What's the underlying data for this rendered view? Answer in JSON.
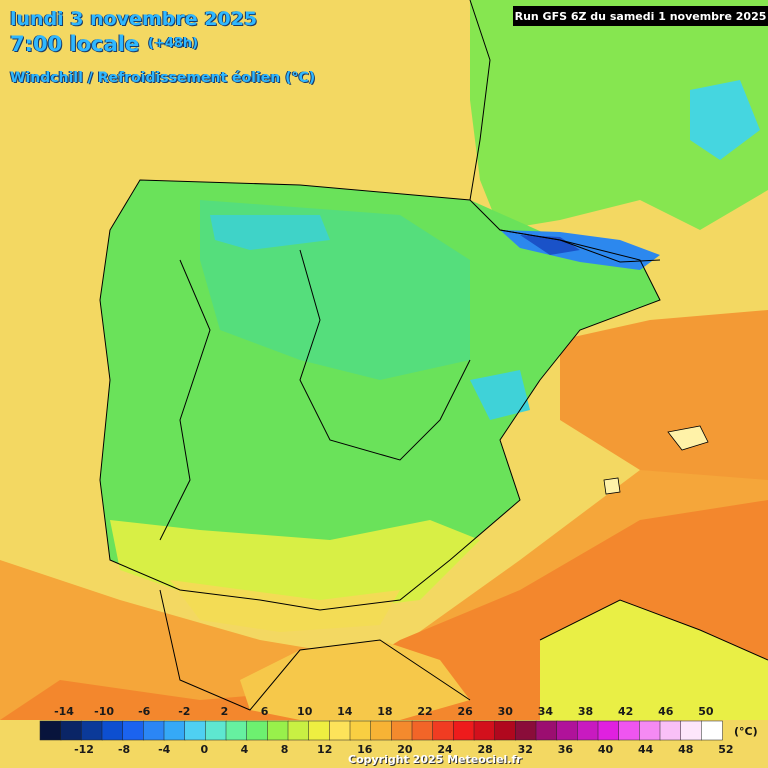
{
  "header": {
    "date": "lundi 3 novembre 2025",
    "time": "7:00 locale",
    "offset": "(+48h)",
    "variable": "Windchill / Refroidissement éolien (°C)"
  },
  "run_banner": "Run GFS 6Z du samedi 1 novembre 2025",
  "copyright": "Copyright 2025 Meteociel.fr",
  "legend": {
    "unit": "(°C)",
    "top_labels": [
      "-14",
      "-10",
      "-6",
      "-2",
      "2",
      "6",
      "10",
      "14",
      "18",
      "22",
      "26",
      "30",
      "34",
      "38",
      "42",
      "46",
      "50"
    ],
    "bottom_labels": [
      "-12",
      "-8",
      "-4",
      "0",
      "4",
      "8",
      "12",
      "16",
      "20",
      "24",
      "28",
      "32",
      "36",
      "40",
      "44",
      "48",
      "52"
    ],
    "colors": [
      "#08143c",
      "#0a2566",
      "#0b3a99",
      "#0d4fd0",
      "#1b63ef",
      "#2b86f5",
      "#35a9f7",
      "#4fd0f2",
      "#5ee7d0",
      "#66f0a0",
      "#6df070",
      "#98f04b",
      "#c8f043",
      "#eeef41",
      "#fde35a",
      "#f9cf42",
      "#f7b335",
      "#f48a2d",
      "#f26528",
      "#f03c22",
      "#ee1b1c",
      "#d3101c",
      "#b0081e",
      "#8a0d3a",
      "#9b0e70",
      "#b0129a",
      "#c81ac0",
      "#e020e0",
      "#ef55f0",
      "#f58af3",
      "#f9c0f7",
      "#fde6fb",
      "#ffffff"
    ]
  },
  "regions": {
    "sea_west": "#f3d862",
    "sea_south": "#f58a2d",
    "land_cool": "#6be45a",
    "land_cold": "#3fd2d8",
    "pyrenees": "#1c6ef0",
    "france": "#8ae650",
    "med_east": "#f28a2d",
    "coast_yellow": "#eeef41"
  }
}
